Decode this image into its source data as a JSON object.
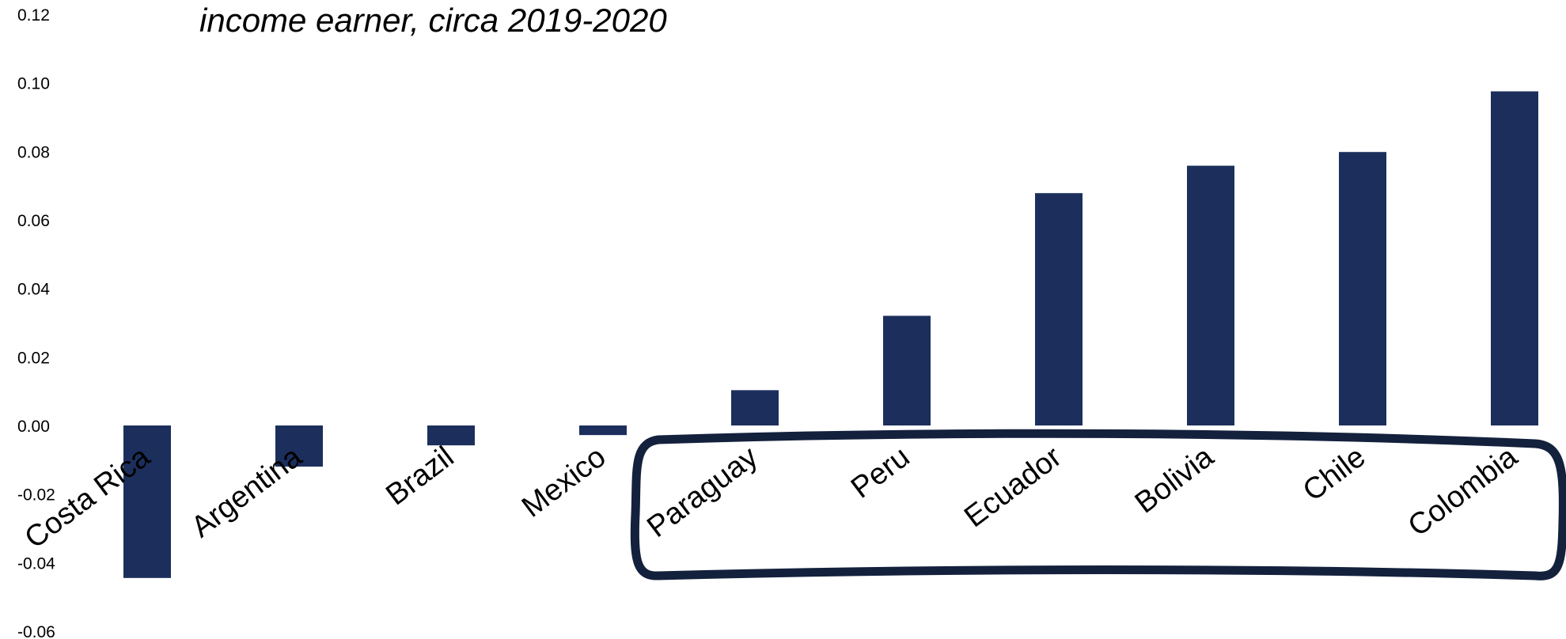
{
  "chart_data": {
    "type": "bar",
    "title": "income earner, circa 2019-2020",
    "categories": [
      "Costa Rica",
      "Argentina",
      "Brazil",
      "Mexico",
      "Paraguay",
      "Peru",
      "Ecuador",
      "Bolivia",
      "Chile",
      "Colombia"
    ],
    "values": [
      -0.0445,
      -0.012,
      -0.0058,
      -0.0028,
      0.0103,
      0.032,
      0.0678,
      0.0758,
      0.0798,
      0.0975
    ],
    "yticks": [
      "0.12",
      "0.10",
      "0.08",
      "0.06",
      "0.04",
      "0.02",
      "0.00",
      "-0.02",
      "-0.04",
      "-0.06"
    ],
    "ylim": [
      -0.06,
      0.12
    ],
    "xlabel": "",
    "ylabel": "",
    "grid": false,
    "legend": "none",
    "highlighted_categories": [
      "Paraguay",
      "Peru",
      "Ecuador",
      "Bolivia",
      "Chile",
      "Colombia"
    ]
  },
  "colors": {
    "bar": "#1c2f5c",
    "highlight_outline": "#14213d",
    "text": "#000000",
    "background": "#ffffff"
  }
}
